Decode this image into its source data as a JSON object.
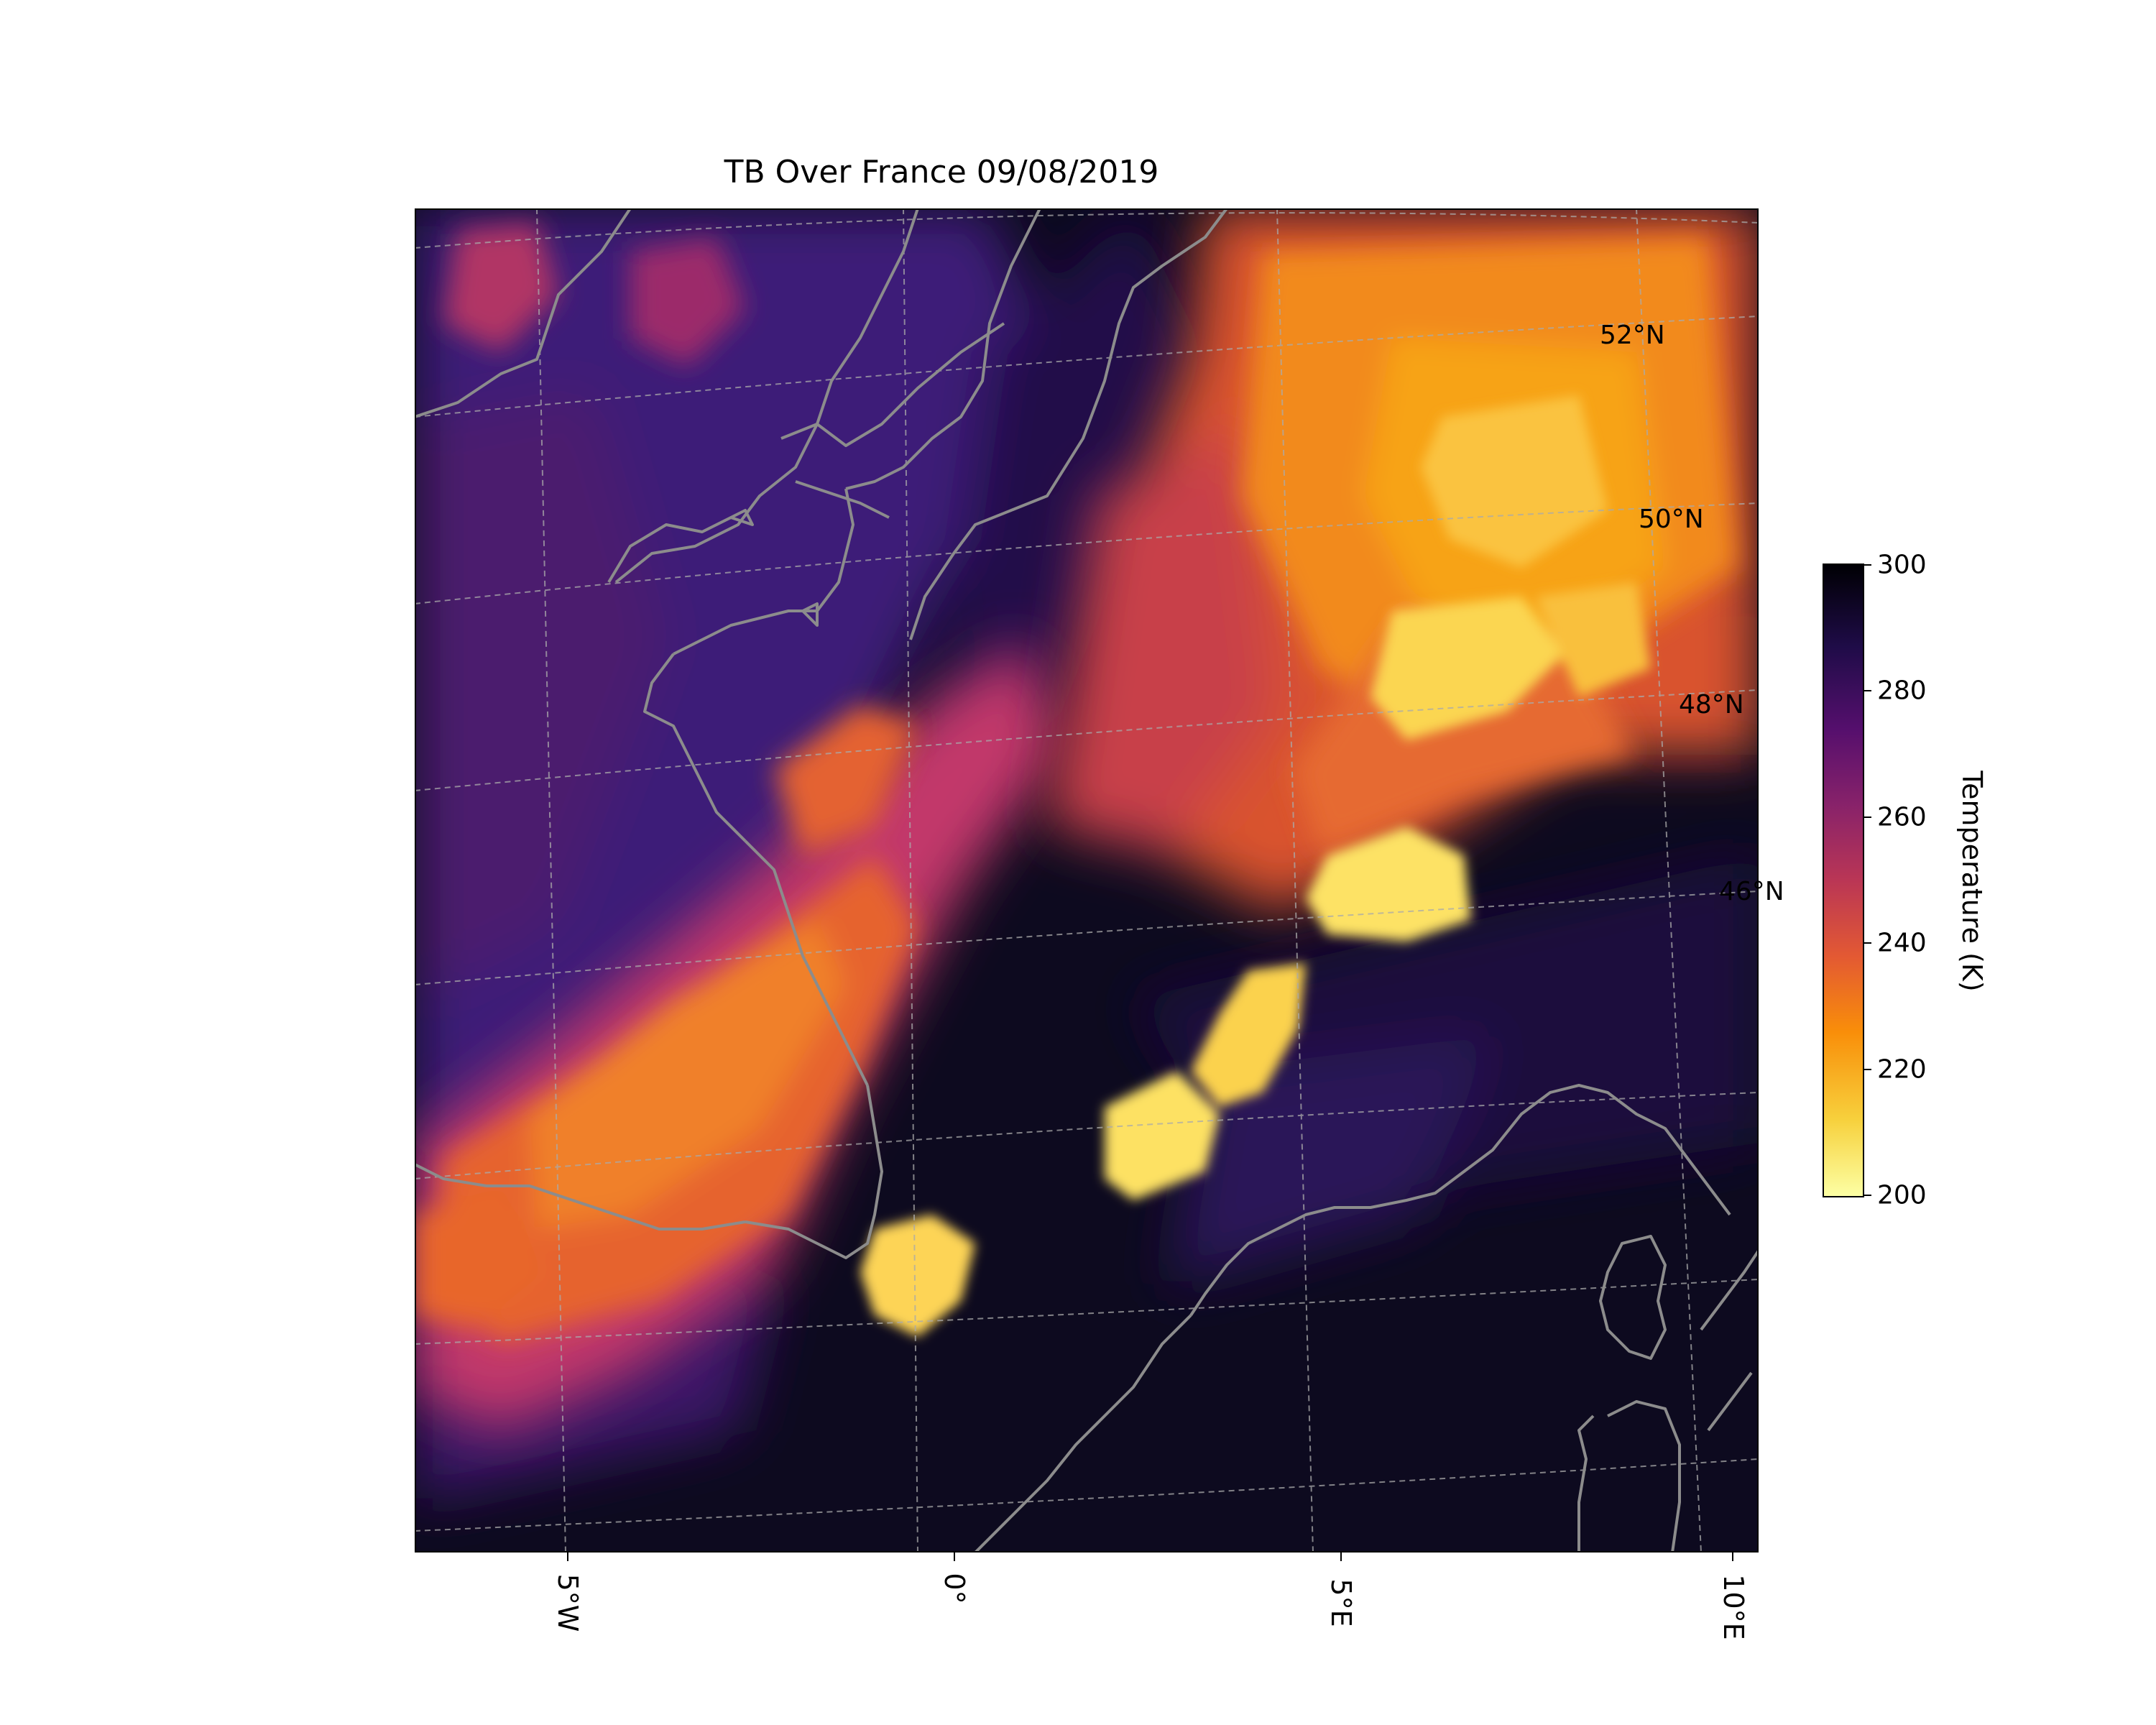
{
  "title": "TB Over France 09/08/2019",
  "map": {
    "projection": "geostationary satellite view",
    "colormap": "inferno_r",
    "coastline_color": "#8c8c8c",
    "gridline_color": "#aaaaaa",
    "gridline_style": "dashed",
    "lon_labels": [
      "5°W",
      "0°",
      "5°E",
      "10°E"
    ],
    "lat_labels": [
      "52°N",
      "50°N",
      "48°N",
      "46°N"
    ]
  },
  "colorbar": {
    "label": "Temperature (K)",
    "min": 200,
    "max": 300,
    "ticks": [
      "300",
      "280",
      "260",
      "240",
      "220",
      "200"
    ]
  }
}
